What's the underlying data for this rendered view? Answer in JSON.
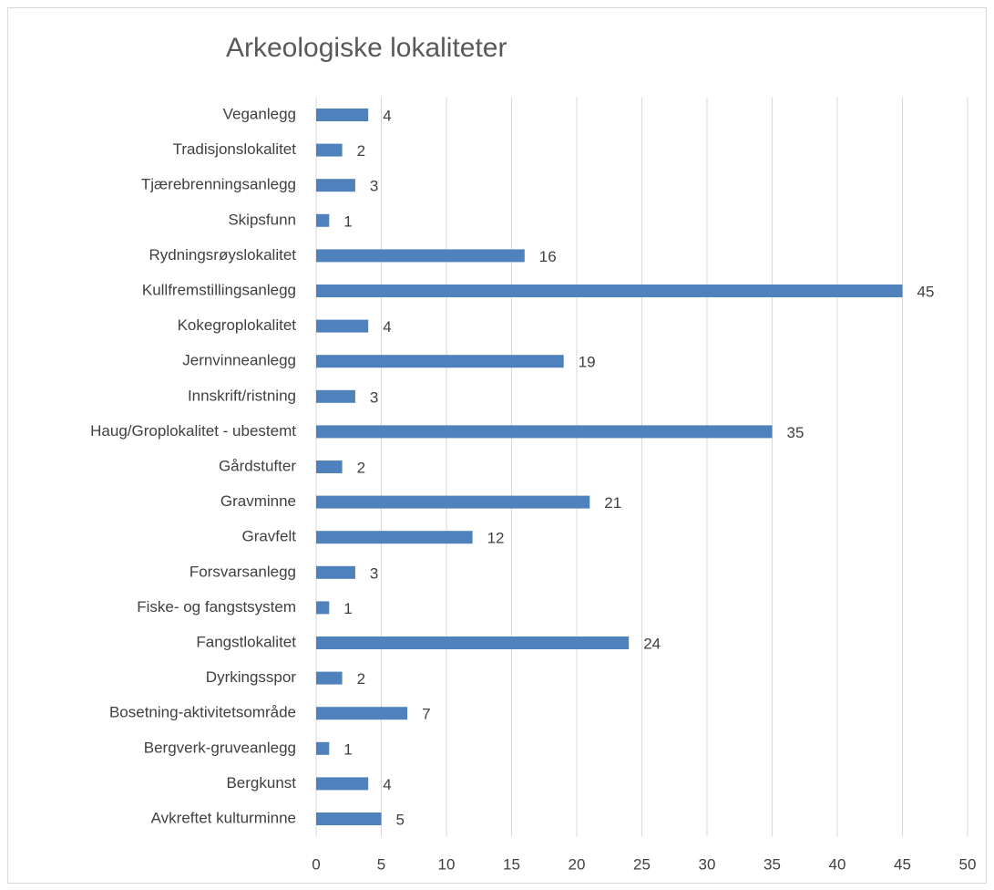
{
  "chart_data": {
    "type": "bar",
    "orientation": "horizontal",
    "title": "Arkeologiske lokaliteter",
    "categories": [
      "Veganlegg",
      "Tradisjonslokalitet",
      "Tjærebrenningsanlegg",
      "Skipsfunn",
      "Rydningsrøyslokalitet",
      "Kullfremstillingsanlegg",
      "Kokegroplokalitet",
      "Jernvinneanlegg",
      "Innskrift/ristning",
      "Haug/Groplokalitet - ubestemt",
      "Gårdstufter",
      "Gravminne",
      "Gravfelt",
      "Forsvarsanlegg",
      "Fiske- og fangstsystem",
      "Fangstlokalitet",
      "Dyrkingsspor",
      "Bosetning-aktivitetsområde",
      "Bergverk-gruveanlegg",
      "Bergkunst",
      "Avkreftet kulturminne"
    ],
    "values": [
      4,
      2,
      3,
      1,
      16,
      45,
      4,
      19,
      3,
      35,
      2,
      21,
      12,
      3,
      1,
      24,
      2,
      7,
      1,
      4,
      5
    ],
    "color": "#4f81bd",
    "xlim": [
      0,
      50
    ],
    "xticks": [
      0,
      5,
      10,
      15,
      20,
      25,
      30,
      35,
      40,
      45,
      50
    ],
    "grid": true
  }
}
